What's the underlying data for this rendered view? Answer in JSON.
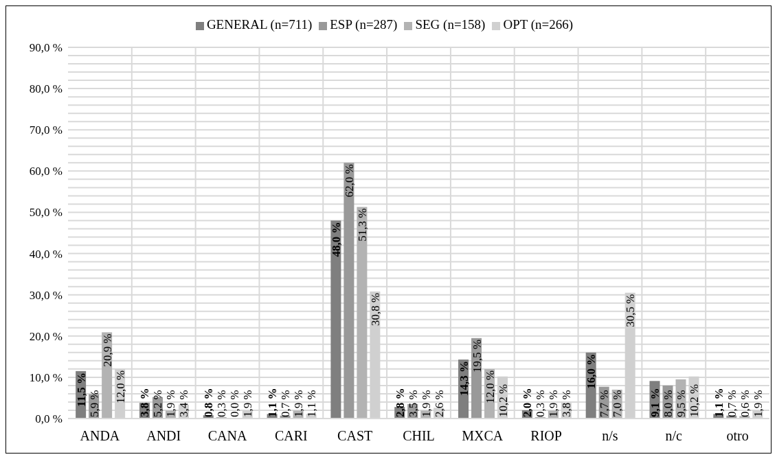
{
  "chart_data": {
    "type": "bar",
    "categories": [
      "ANDA",
      "ANDI",
      "CANA",
      "CARI",
      "CAST",
      "CHIL",
      "MXCA",
      "RIOP",
      "n/s",
      "n/c",
      "otro"
    ],
    "series": [
      {
        "name": "GENERAL (n=711)",
        "color": "#7f7f7f",
        "values": [
          11.5,
          3.8,
          0.8,
          1.1,
          48.0,
          2.8,
          14.3,
          2.0,
          16.0,
          9.1,
          1.1
        ],
        "value_labels": [
          "11,5 %",
          "3,8 %",
          "0,8 %",
          "1,1 %",
          "48,0 %",
          "2,8 %",
          "14,3 %",
          "2,0 %",
          "16,0 %",
          "9,1 %",
          "1,1 %"
        ]
      },
      {
        "name": "ESP (n=287)",
        "color": "#999999",
        "values": [
          5.9,
          5.2,
          0.3,
          0.7,
          62.0,
          3.5,
          19.5,
          0.3,
          7.7,
          8.0,
          0.7
        ],
        "value_labels": [
          "5,9 %",
          "5,2 %",
          "0,3 %",
          "0,7 %",
          "62,0 %",
          "3,5 %",
          "19,5 %",
          "0,3 %",
          "7,7 %",
          "8,0 %",
          "0,7 %"
        ]
      },
      {
        "name": "SEG (n=158)",
        "color": "#b3b3b3",
        "values": [
          20.9,
          1.9,
          0.0,
          1.9,
          51.3,
          1.9,
          12.0,
          1.9,
          7.0,
          9.5,
          0.6
        ],
        "value_labels": [
          "20,9 %",
          "1,9 %",
          "0,0 %",
          "1,9 %",
          "51,3 %",
          "1,9 %",
          "12,0 %",
          "1,9 %",
          "7,0 %",
          "9,5 %",
          "0,6 %"
        ]
      },
      {
        "name": "OPT (n=266)",
        "color": "#d0d0d0",
        "values": [
          12.0,
          3.4,
          1.9,
          1.1,
          30.8,
          2.6,
          10.2,
          3.8,
          30.5,
          10.2,
          1.9
        ],
        "value_labels": [
          "12,0 %",
          "3,4 %",
          "1,9 %",
          "1,1 %",
          "30,8 %",
          "2,6 %",
          "10,2 %",
          "3,8 %",
          "30,5 %",
          "10,2 %",
          "1,9 %"
        ]
      }
    ],
    "ylim": [
      0,
      90
    ],
    "yticks": [
      {
        "value": 0,
        "label": "0,0 %"
      },
      {
        "value": 2,
        "label": null
      },
      {
        "value": 4,
        "label": null
      },
      {
        "value": 6,
        "label": null
      },
      {
        "value": 8,
        "label": null
      },
      {
        "value": 10,
        "label": "10,0 %"
      },
      {
        "value": 12,
        "label": null
      },
      {
        "value": 14,
        "label": null
      },
      {
        "value": 16,
        "label": null
      },
      {
        "value": 18,
        "label": null
      },
      {
        "value": 20,
        "label": "20,0 %"
      },
      {
        "value": 22,
        "label": null
      },
      {
        "value": 24,
        "label": null
      },
      {
        "value": 26,
        "label": null
      },
      {
        "value": 28,
        "label": null
      },
      {
        "value": 30,
        "label": "30,0 %"
      },
      {
        "value": 32,
        "label": null
      },
      {
        "value": 34,
        "label": null
      },
      {
        "value": 36,
        "label": null
      },
      {
        "value": 38,
        "label": null
      },
      {
        "value": 40,
        "label": "40,0 %"
      },
      {
        "value": 42,
        "label": null
      },
      {
        "value": 44,
        "label": null
      },
      {
        "value": 46,
        "label": null
      },
      {
        "value": 48,
        "label": null
      },
      {
        "value": 50,
        "label": "50,0 %"
      },
      {
        "value": 52,
        "label": null
      },
      {
        "value": 54,
        "label": null
      },
      {
        "value": 56,
        "label": null
      },
      {
        "value": 58,
        "label": null
      },
      {
        "value": 60,
        "label": "60,0 %"
      },
      {
        "value": 62,
        "label": null
      },
      {
        "value": 64,
        "label": null
      },
      {
        "value": 66,
        "label": null
      },
      {
        "value": 68,
        "label": null
      },
      {
        "value": 70,
        "label": "70,0 %"
      },
      {
        "value": 72,
        "label": null
      },
      {
        "value": 74,
        "label": null
      },
      {
        "value": 76,
        "label": null
      },
      {
        "value": 78,
        "label": null
      },
      {
        "value": 80,
        "label": "80,0 %"
      },
      {
        "value": 82,
        "label": null
      },
      {
        "value": 84,
        "label": null
      },
      {
        "value": 86,
        "label": null
      },
      {
        "value": 88,
        "label": null
      },
      {
        "value": 90,
        "label": "90,0 %"
      }
    ],
    "grid": true,
    "legend": "top"
  }
}
